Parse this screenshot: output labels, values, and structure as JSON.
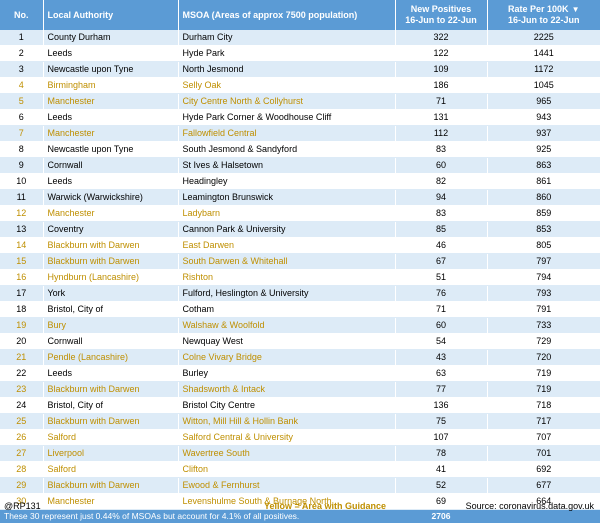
{
  "header": {
    "no": "No.",
    "local_authority": "Local Authority",
    "msoa": "MSOA (Areas of approx 7500 population)",
    "new_positives_line1": "New Positives",
    "new_positives_line2": "16-Jun to 22-Jun",
    "rate_line1": "Rate Per 100K",
    "rate_line2": "16-Jun to 22-Jun",
    "sort_icon": "triangle-down-icon"
  },
  "rows": [
    {
      "no": "1",
      "la": "County Durham",
      "msoa": "Durham City",
      "pos": "322",
      "rate": "2225",
      "hl": false
    },
    {
      "no": "2",
      "la": "Leeds",
      "msoa": "Hyde Park",
      "pos": "122",
      "rate": "1441",
      "hl": false
    },
    {
      "no": "3",
      "la": "Newcastle upon Tyne",
      "msoa": "North Jesmond",
      "pos": "109",
      "rate": "1172",
      "hl": false
    },
    {
      "no": "4",
      "la": "Birmingham",
      "msoa": "Selly Oak",
      "pos": "186",
      "rate": "1045",
      "hl": true
    },
    {
      "no": "5",
      "la": "Manchester",
      "msoa": "City Centre North & Collyhurst",
      "pos": "71",
      "rate": "965",
      "hl": true
    },
    {
      "no": "6",
      "la": "Leeds",
      "msoa": "Hyde Park Corner & Woodhouse Cliff",
      "pos": "131",
      "rate": "943",
      "hl": false
    },
    {
      "no": "7",
      "la": "Manchester",
      "msoa": "Fallowfield Central",
      "pos": "112",
      "rate": "937",
      "hl": true
    },
    {
      "no": "8",
      "la": "Newcastle upon Tyne",
      "msoa": "South Jesmond & Sandyford",
      "pos": "83",
      "rate": "925",
      "hl": false
    },
    {
      "no": "9",
      "la": "Cornwall",
      "msoa": "St Ives & Halsetown",
      "pos": "60",
      "rate": "863",
      "hl": false
    },
    {
      "no": "10",
      "la": "Leeds",
      "msoa": "Headingley",
      "pos": "82",
      "rate": "861",
      "hl": false
    },
    {
      "no": "11",
      "la": "Warwick (Warwickshire)",
      "msoa": "Leamington Brunswick",
      "pos": "94",
      "rate": "860",
      "hl": false
    },
    {
      "no": "12",
      "la": "Manchester",
      "msoa": "Ladybarn",
      "pos": "83",
      "rate": "859",
      "hl": true
    },
    {
      "no": "13",
      "la": "Coventry",
      "msoa": "Cannon Park & University",
      "pos": "85",
      "rate": "853",
      "hl": false
    },
    {
      "no": "14",
      "la": "Blackburn with Darwen",
      "msoa": "East Darwen",
      "pos": "46",
      "rate": "805",
      "hl": true
    },
    {
      "no": "15",
      "la": "Blackburn with Darwen",
      "msoa": "South Darwen & Whitehall",
      "pos": "67",
      "rate": "797",
      "hl": true
    },
    {
      "no": "16",
      "la": "Hyndburn (Lancashire)",
      "msoa": "Rishton",
      "pos": "51",
      "rate": "794",
      "hl": true
    },
    {
      "no": "17",
      "la": "York",
      "msoa": "Fulford, Heslington & University",
      "pos": "76",
      "rate": "793",
      "hl": false
    },
    {
      "no": "18",
      "la": "Bristol, City of",
      "msoa": "Cotham",
      "pos": "71",
      "rate": "791",
      "hl": false
    },
    {
      "no": "19",
      "la": "Bury",
      "msoa": "Walshaw & Woolfold",
      "pos": "60",
      "rate": "733",
      "hl": true
    },
    {
      "no": "20",
      "la": "Cornwall",
      "msoa": "Newquay West",
      "pos": "54",
      "rate": "729",
      "hl": false
    },
    {
      "no": "21",
      "la": "Pendle (Lancashire)",
      "msoa": "Colne Vivary Bridge",
      "pos": "43",
      "rate": "720",
      "hl": true
    },
    {
      "no": "22",
      "la": "Leeds",
      "msoa": "Burley",
      "pos": "63",
      "rate": "719",
      "hl": false
    },
    {
      "no": "23",
      "la": "Blackburn with Darwen",
      "msoa": "Shadsworth & Intack",
      "pos": "77",
      "rate": "719",
      "hl": true
    },
    {
      "no": "24",
      "la": "Bristol, City of",
      "msoa": "Bristol City Centre",
      "pos": "136",
      "rate": "718",
      "hl": false
    },
    {
      "no": "25",
      "la": "Blackburn with Darwen",
      "msoa": "Witton, Mill Hill & Hollin Bank",
      "pos": "75",
      "rate": "717",
      "hl": true
    },
    {
      "no": "26",
      "la": "Salford",
      "msoa": "Salford Central & University",
      "pos": "107",
      "rate": "707",
      "hl": true
    },
    {
      "no": "27",
      "la": "Liverpool",
      "msoa": "Wavertree South",
      "pos": "78",
      "rate": "701",
      "hl": true
    },
    {
      "no": "28",
      "la": "Salford",
      "msoa": "Clifton",
      "pos": "41",
      "rate": "692",
      "hl": true
    },
    {
      "no": "29",
      "la": "Blackburn with Darwen",
      "msoa": "Ewood & Fernhurst",
      "pos": "52",
      "rate": "677",
      "hl": true
    },
    {
      "no": "30",
      "la": "Manchester",
      "msoa": "Levenshulme South & Burnage North",
      "pos": "69",
      "rate": "664",
      "hl": true
    }
  ],
  "footer": {
    "note": "These 30 represent just 0.44% of MSOAs but account for 4.1% of all positives.",
    "total": "2706"
  },
  "bottom": {
    "handle": "@RP131",
    "guidance": "Yellow = Area with Guidance",
    "source": "Source: coronavirus.data.gov.uk"
  },
  "colors": {
    "header_bg": "#5b9bd5",
    "band": "#ddebf7",
    "highlight_text": "#bf8f00"
  }
}
